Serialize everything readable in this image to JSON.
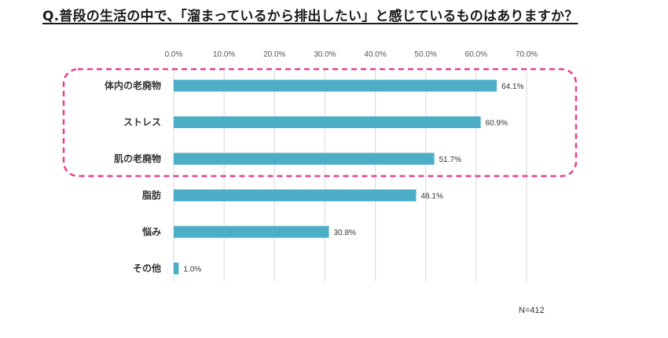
{
  "question": "Q.普段の生活の中で、「溜まっているから排出したい」と感じているものはありますか？",
  "sample_size": "N=412",
  "colors": {
    "bar": "#4daec8",
    "grid": "#d9d9d9",
    "highlight": "#e83e8c"
  },
  "chart_data": {
    "type": "bar",
    "orientation": "horizontal",
    "categories": [
      "体内の老廃物",
      "ストレス",
      "肌の老廃物",
      "脂肪",
      "悩み",
      "その他"
    ],
    "values": [
      64.1,
      60.9,
      51.7,
      48.1,
      30.8,
      1.0
    ],
    "value_labels": [
      "64.1%",
      "60.9%",
      "51.7%",
      "48.1%",
      "30.8%",
      "1.0%"
    ],
    "xlim": [
      0,
      70
    ],
    "ticks": [
      0,
      10,
      20,
      30,
      40,
      50,
      60,
      70
    ],
    "tick_labels": [
      "0.0%",
      "10.0%",
      "20.0%",
      "30.0%",
      "40.0%",
      "50.0%",
      "60.0%",
      "70.0%"
    ],
    "axis_position": "top",
    "grid": true,
    "highlight_categories": [
      "体内の老廃物",
      "ストレス",
      "肌の老廃物"
    ]
  }
}
